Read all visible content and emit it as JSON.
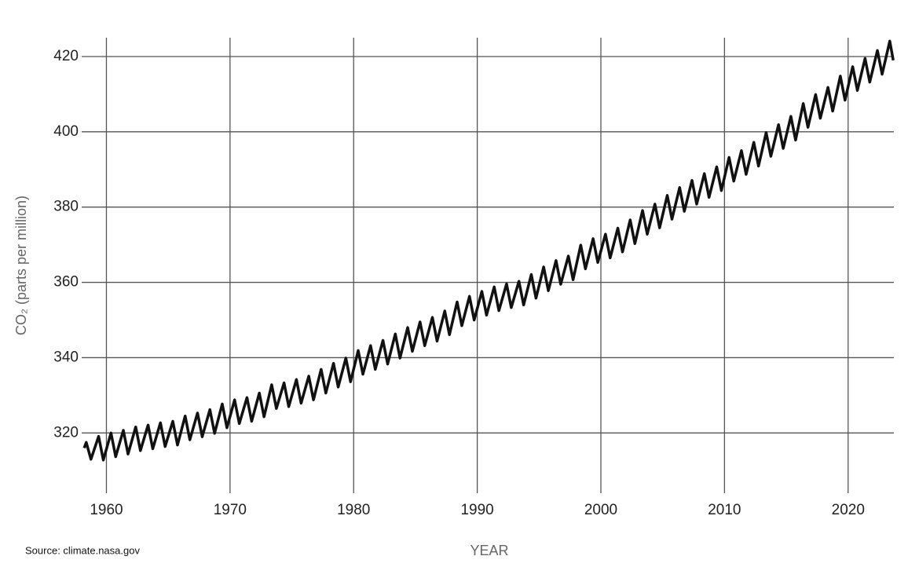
{
  "chart_data": {
    "type": "line",
    "y_label": "CO₂ (parts per million)",
    "x_label": "YEAR",
    "source": "Source: climate.nasa.gov",
    "xlim": [
      1958,
      2023.7
    ],
    "ylim": [
      304,
      425
    ],
    "xticks": [
      1960,
      1970,
      1980,
      1990,
      2000,
      2010,
      2020
    ],
    "yticks": [
      320,
      340,
      360,
      380,
      400,
      420
    ],
    "grid": true,
    "x": [
      1958.2,
      1958.37,
      1958.75,
      1959.37,
      1959.75,
      1960.37,
      1960.75,
      1961.37,
      1961.75,
      1962.37,
      1962.75,
      1963.37,
      1963.75,
      1964.37,
      1964.75,
      1965.37,
      1965.75,
      1966.37,
      1966.75,
      1967.37,
      1967.75,
      1968.37,
      1968.75,
      1969.37,
      1969.75,
      1970.37,
      1970.75,
      1971.37,
      1971.75,
      1972.37,
      1972.75,
      1973.37,
      1973.75,
      1974.37,
      1974.75,
      1975.37,
      1975.75,
      1976.37,
      1976.75,
      1977.37,
      1977.75,
      1978.37,
      1978.75,
      1979.37,
      1979.75,
      1980.37,
      1980.75,
      1981.37,
      1981.75,
      1982.37,
      1982.75,
      1983.37,
      1983.75,
      1984.37,
      1984.75,
      1985.37,
      1985.75,
      1986.37,
      1986.75,
      1987.37,
      1987.75,
      1988.37,
      1988.75,
      1989.37,
      1989.75,
      1990.37,
      1990.75,
      1991.37,
      1991.75,
      1992.37,
      1992.75,
      1993.37,
      1993.75,
      1994.37,
      1994.75,
      1995.37,
      1995.75,
      1996.37,
      1996.75,
      1997.37,
      1997.75,
      1998.37,
      1998.75,
      1999.37,
      1999.75,
      2000.37,
      2000.75,
      2001.37,
      2001.75,
      2002.37,
      2002.75,
      2003.37,
      2003.75,
      2004.37,
      2004.75,
      2005.37,
      2005.75,
      2006.37,
      2006.75,
      2007.37,
      2007.75,
      2008.37,
      2008.75,
      2009.37,
      2009.75,
      2010.37,
      2010.75,
      2011.37,
      2011.75,
      2012.37,
      2012.75,
      2013.37,
      2013.75,
      2014.37,
      2014.75,
      2015.37,
      2015.75,
      2016.37,
      2016.75,
      2017.37,
      2017.75,
      2018.37,
      2018.75,
      2019.37,
      2019.75,
      2020.37,
      2020.75,
      2021.37,
      2021.75,
      2022.37,
      2022.75,
      2023.37,
      2023.65
    ],
    "series": [
      {
        "name": "CO₂",
        "color": "#111111",
        "values": [
          316.0,
          317.5,
          313.0,
          319.1,
          312.8,
          320.0,
          313.7,
          320.7,
          314.4,
          321.6,
          315.3,
          322.1,
          315.8,
          322.7,
          316.4,
          323.1,
          316.8,
          324.5,
          318.2,
          325.3,
          319.0,
          326.2,
          319.9,
          327.7,
          321.4,
          328.8,
          322.5,
          329.4,
          323.1,
          330.6,
          324.3,
          332.8,
          326.5,
          333.3,
          327.0,
          334.2,
          327.9,
          335.1,
          328.8,
          336.9,
          330.6,
          338.5,
          332.2,
          339.9,
          333.6,
          341.9,
          335.6,
          343.2,
          336.9,
          344.6,
          338.3,
          346.3,
          339.9,
          348.0,
          341.7,
          349.5,
          343.2,
          350.7,
          344.4,
          352.4,
          346.1,
          354.8,
          348.5,
          356.3,
          350.0,
          357.6,
          351.3,
          358.8,
          352.5,
          359.6,
          353.3,
          360.3,
          354.0,
          362.1,
          355.8,
          364.1,
          357.8,
          365.8,
          359.5,
          367.0,
          360.7,
          369.9,
          363.6,
          371.6,
          365.3,
          372.8,
          366.5,
          374.4,
          368.1,
          376.6,
          370.3,
          379.1,
          372.8,
          380.8,
          374.5,
          383.1,
          376.8,
          385.2,
          378.9,
          387.1,
          380.8,
          388.9,
          382.6,
          390.7,
          384.4,
          393.2,
          386.9,
          395.0,
          388.7,
          397.2,
          390.9,
          399.8,
          393.5,
          401.9,
          395.6,
          404.1,
          397.8,
          407.5,
          401.2,
          409.9,
          403.6,
          411.8,
          405.5,
          414.8,
          408.4,
          417.3,
          411.0,
          419.5,
          413.2,
          421.6,
          415.3,
          424.1,
          419.0
        ]
      }
    ]
  }
}
